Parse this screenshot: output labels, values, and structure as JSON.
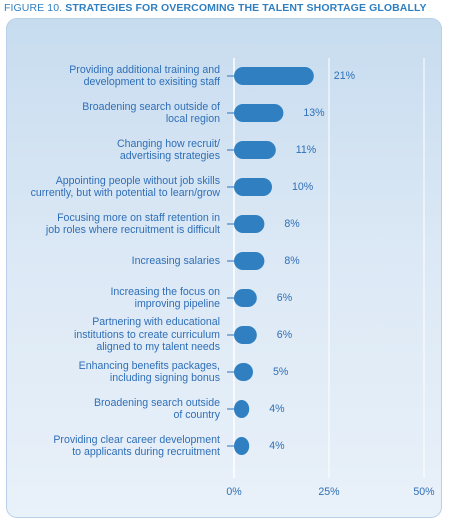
{
  "figure": {
    "label": "FIGURE 10.",
    "title": "STRATEGIES FOR OVERCOMING THE TALENT SHORTAGE GLOBALLY"
  },
  "colors": {
    "bar": "#2f7fc1",
    "text": "#2f6fb8",
    "title": "#2f7fc1",
    "gridline": "#ffffff",
    "panel_top": "#c7dcef",
    "panel_bottom": "#e9f1f9"
  },
  "chart_data": {
    "type": "bar",
    "orientation": "horizontal",
    "title": "STRATEGIES FOR OVERCOMING THE TALENT SHORTAGE GLOBALLY",
    "categories": [
      "Providing additional training and\ndevelopment to exisiting staff",
      "Broadening search outside of\nlocal region",
      "Changing how recruit/\nadvertising strategies",
      "Appointing people without job skills\ncurrently, but with potential to learn/grow",
      "Focusing more on staff retention in\njob roles where recruitment is difficult",
      "Increasing salaries",
      "Increasing the focus on\nimproving pipeline",
      "Partnering with educational\ninstitutions to create curriculum\naligned to my talent needs",
      "Enhancing benefits packages,\nincluding signing bonus",
      "Broadening search outside\nof country",
      "Providing clear career development\nto applicants during recruitment"
    ],
    "values": [
      21,
      13,
      11,
      10,
      8,
      8,
      6,
      6,
      5,
      4,
      4
    ],
    "value_labels": [
      "21%",
      "13%",
      "11%",
      "10%",
      "8%",
      "8%",
      "6%",
      "6%",
      "5%",
      "4%",
      "4%"
    ],
    "xlim": [
      0,
      50
    ],
    "xticks": [
      0,
      25,
      50
    ],
    "xtick_labels": [
      "0%",
      "25%",
      "50%"
    ],
    "grid": true,
    "legend": "none"
  }
}
